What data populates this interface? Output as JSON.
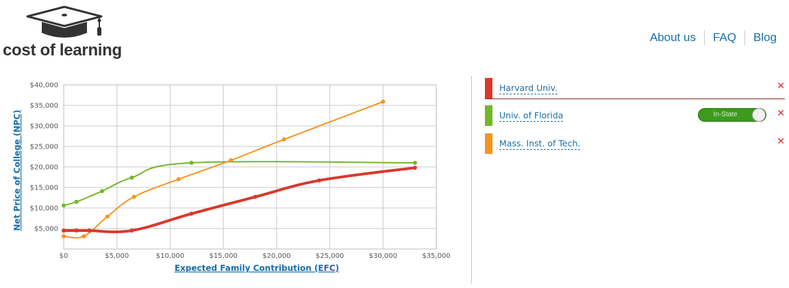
{
  "header": {
    "logo_text": "cost of learning",
    "nav": [
      {
        "label": "About us"
      },
      {
        "label": "FAQ"
      },
      {
        "label": "Blog"
      }
    ]
  },
  "colors": {
    "harvard": "#d9392b",
    "florida": "#73b72a",
    "mit": "#f7941d",
    "link": "#1a6fa8"
  },
  "legend": [
    {
      "name": "Harvard Univ.",
      "color": "#d9392b",
      "remove": "✕"
    },
    {
      "name": "Univ. of Florida",
      "color": "#73b72a",
      "toggle_label": "In-State",
      "remove": "✕"
    },
    {
      "name": "Mass. Inst. of Tech.",
      "color": "#f7941d",
      "remove": "✕"
    }
  ],
  "chart_data": {
    "type": "line",
    "xlabel": "Expected Family Contribution (EFC)",
    "ylabel": "Net Price of College (NPC)",
    "xlim": [
      0,
      35000
    ],
    "ylim": [
      0,
      40000
    ],
    "x_ticks": [
      0,
      5000,
      10000,
      15000,
      20000,
      25000,
      30000,
      35000
    ],
    "x_tick_labels": [
      "$0",
      "$5,000",
      "$10,000",
      "$15,000",
      "$20,000",
      "$25,000",
      "$30,000",
      "$35,000"
    ],
    "y_ticks": [
      5000,
      10000,
      15000,
      20000,
      25000,
      30000,
      35000,
      40000
    ],
    "y_tick_labels": [
      "$5,000",
      "$10,000",
      "$15,000",
      "$20,000",
      "$25,000",
      "$30,000",
      "$35,000",
      "$40,000"
    ],
    "grid": true,
    "series": [
      {
        "name": "Harvard Univ.",
        "color": "#d9392b",
        "width": 4,
        "points": [
          [
            0,
            4500
          ],
          [
            1200,
            4500
          ],
          [
            2400,
            4500
          ],
          [
            6400,
            4500
          ],
          [
            12000,
            8600
          ],
          [
            18000,
            12700
          ],
          [
            24000,
            16700
          ],
          [
            33000,
            19800
          ]
        ]
      },
      {
        "name": "Univ. of Florida",
        "color": "#73b72a",
        "width": 2,
        "points": [
          [
            0,
            10600
          ],
          [
            1200,
            11500
          ],
          [
            3600,
            14100
          ],
          [
            6400,
            17400
          ],
          [
            12000,
            21000
          ],
          [
            33000,
            21000
          ]
        ]
      },
      {
        "name": "Mass. Inst. of Tech.",
        "color": "#f7941d",
        "width": 2,
        "points": [
          [
            0,
            3100
          ],
          [
            1900,
            3100
          ],
          [
            4100,
            7900
          ],
          [
            6600,
            12700
          ],
          [
            10800,
            17000
          ],
          [
            15700,
            21600
          ],
          [
            20700,
            26700
          ],
          [
            30000,
            35900
          ]
        ]
      }
    ]
  }
}
